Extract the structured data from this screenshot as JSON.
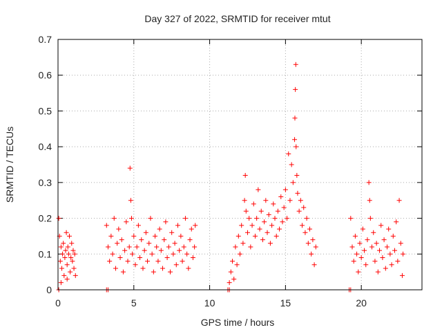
{
  "chart_data": {
    "type": "scatter",
    "title": "Day 327 of 2022, SRMTID for receiver mtut",
    "xlabel": "GPS time / hours",
    "ylabel": "SRMTID / TECUs",
    "xlim": [
      0,
      24
    ],
    "ylim": [
      0,
      0.7
    ],
    "xticks": [
      0,
      5,
      10,
      15,
      20
    ],
    "xtick_labels": [
      "0",
      "5",
      "10",
      "15",
      "20"
    ],
    "yticks": [
      0,
      0.1,
      0.2,
      0.3,
      0.4,
      0.5,
      0.6,
      0.7
    ],
    "ytick_labels": [
      "0",
      "0.1",
      "0.2",
      "0.3",
      "0.4",
      "0.5",
      "0.6",
      "0.7"
    ],
    "grid": true,
    "marker": "+",
    "color": "#ff0000",
    "series": [
      {
        "name": "SRMTID",
        "points": [
          [
            0.05,
            0.2
          ],
          [
            0.1,
            0.15
          ],
          [
            0.15,
            0.08
          ],
          [
            0.2,
            0.12
          ],
          [
            0.25,
            0.06
          ],
          [
            0.3,
            0.1
          ],
          [
            0.35,
            0.13
          ],
          [
            0.4,
            0.04
          ],
          [
            0.45,
            0.09
          ],
          [
            0.5,
            0.11
          ],
          [
            0.55,
            0.16
          ],
          [
            0.6,
            0.07
          ],
          [
            0.65,
            0.12
          ],
          [
            0.7,
            0.1
          ],
          [
            0.75,
            0.15
          ],
          [
            0.8,
            0.05
          ],
          [
            0.85,
            0.09
          ],
          [
            0.9,
            0.13
          ],
          [
            0.95,
            0.08
          ],
          [
            1.0,
            0.11
          ],
          [
            1.05,
            0.06
          ],
          [
            1.1,
            0.1
          ],
          [
            1.15,
            0.04
          ],
          [
            0.2,
            0.02
          ],
          [
            0.6,
            0.03
          ],
          [
            0.05,
            0.0
          ],
          [
            3.2,
            0.0
          ],
          [
            3.3,
            0.0
          ],
          [
            3.2,
            0.18
          ],
          [
            3.3,
            0.12
          ],
          [
            3.4,
            0.08
          ],
          [
            3.5,
            0.15
          ],
          [
            3.6,
            0.1
          ],
          [
            3.7,
            0.2
          ],
          [
            3.8,
            0.06
          ],
          [
            3.9,
            0.13
          ],
          [
            4.0,
            0.17
          ],
          [
            4.1,
            0.09
          ],
          [
            4.2,
            0.14
          ],
          [
            4.3,
            0.05
          ],
          [
            4.4,
            0.11
          ],
          [
            4.5,
            0.19
          ],
          [
            4.6,
            0.08
          ],
          [
            4.7,
            0.12
          ],
          [
            4.75,
            0.34
          ],
          [
            4.8,
            0.25
          ],
          [
            4.85,
            0.2
          ],
          [
            4.9,
            0.1
          ],
          [
            5.0,
            0.15
          ],
          [
            5.1,
            0.07
          ],
          [
            5.2,
            0.12
          ],
          [
            5.3,
            0.18
          ],
          [
            5.4,
            0.09
          ],
          [
            5.5,
            0.14
          ],
          [
            5.6,
            0.06
          ],
          [
            5.7,
            0.11
          ],
          [
            5.8,
            0.16
          ],
          [
            5.9,
            0.08
          ],
          [
            6.0,
            0.13
          ],
          [
            6.1,
            0.2
          ],
          [
            6.2,
            0.1
          ],
          [
            6.3,
            0.05
          ],
          [
            6.4,
            0.15
          ],
          [
            6.5,
            0.12
          ],
          [
            6.6,
            0.08
          ],
          [
            6.7,
            0.17
          ],
          [
            6.8,
            0.11
          ],
          [
            6.9,
            0.06
          ],
          [
            7.0,
            0.14
          ],
          [
            7.1,
            0.19
          ],
          [
            7.2,
            0.09
          ],
          [
            7.3,
            0.12
          ],
          [
            7.4,
            0.05
          ],
          [
            7.5,
            0.16
          ],
          [
            7.6,
            0.1
          ],
          [
            7.7,
            0.13
          ],
          [
            7.8,
            0.07
          ],
          [
            7.9,
            0.18
          ],
          [
            8.0,
            0.11
          ],
          [
            8.1,
            0.15
          ],
          [
            8.2,
            0.08
          ],
          [
            8.3,
            0.12
          ],
          [
            8.4,
            0.2
          ],
          [
            8.5,
            0.1
          ],
          [
            8.6,
            0.06
          ],
          [
            8.7,
            0.14
          ],
          [
            8.8,
            0.17
          ],
          [
            8.9,
            0.09
          ],
          [
            9.0,
            0.12
          ],
          [
            9.05,
            0.18
          ],
          [
            11.2,
            0.0
          ],
          [
            11.3,
            0.0
          ],
          [
            11.3,
            0.02
          ],
          [
            11.4,
            0.05
          ],
          [
            11.5,
            0.08
          ],
          [
            11.6,
            0.03
          ],
          [
            11.7,
            0.12
          ],
          [
            11.8,
            0.07
          ],
          [
            11.9,
            0.15
          ],
          [
            12.0,
            0.1
          ],
          [
            12.1,
            0.18
          ],
          [
            12.2,
            0.13
          ],
          [
            12.3,
            0.25
          ],
          [
            12.35,
            0.32
          ],
          [
            12.4,
            0.22
          ],
          [
            12.5,
            0.16
          ],
          [
            12.6,
            0.2
          ],
          [
            12.7,
            0.12
          ],
          [
            12.8,
            0.18
          ],
          [
            12.9,
            0.24
          ],
          [
            13.0,
            0.15
          ],
          [
            13.1,
            0.2
          ],
          [
            13.2,
            0.28
          ],
          [
            13.3,
            0.17
          ],
          [
            13.4,
            0.22
          ],
          [
            13.5,
            0.14
          ],
          [
            13.6,
            0.19
          ],
          [
            13.7,
            0.25
          ],
          [
            13.8,
            0.16
          ],
          [
            13.9,
            0.21
          ],
          [
            14.0,
            0.13
          ],
          [
            14.1,
            0.18
          ],
          [
            14.2,
            0.24
          ],
          [
            14.3,
            0.2
          ],
          [
            14.4,
            0.15
          ],
          [
            14.5,
            0.22
          ],
          [
            14.6,
            0.17
          ],
          [
            14.7,
            0.26
          ],
          [
            14.8,
            0.19
          ],
          [
            14.9,
            0.23
          ],
          [
            15.0,
            0.28
          ],
          [
            15.1,
            0.2
          ],
          [
            15.2,
            0.38
          ],
          [
            15.3,
            0.25
          ],
          [
            15.4,
            0.35
          ],
          [
            15.5,
            0.3
          ],
          [
            15.6,
            0.42
          ],
          [
            15.62,
            0.48
          ],
          [
            15.65,
            0.56
          ],
          [
            15.68,
            0.63
          ],
          [
            15.7,
            0.4
          ],
          [
            15.75,
            0.32
          ],
          [
            15.8,
            0.27
          ],
          [
            15.9,
            0.22
          ],
          [
            16.0,
            0.25
          ],
          [
            16.1,
            0.18
          ],
          [
            16.2,
            0.23
          ],
          [
            16.3,
            0.16
          ],
          [
            16.4,
            0.2
          ],
          [
            16.5,
            0.13
          ],
          [
            16.6,
            0.17
          ],
          [
            16.7,
            0.1
          ],
          [
            16.8,
            0.14
          ],
          [
            16.9,
            0.07
          ],
          [
            17.0,
            0.12
          ],
          [
            19.2,
            0.0
          ],
          [
            19.3,
            0.0
          ],
          [
            19.3,
            0.2
          ],
          [
            19.4,
            0.12
          ],
          [
            19.5,
            0.08
          ],
          [
            19.6,
            0.15
          ],
          [
            19.7,
            0.1
          ],
          [
            19.8,
            0.05
          ],
          [
            19.9,
            0.13
          ],
          [
            20.0,
            0.09
          ],
          [
            20.1,
            0.17
          ],
          [
            20.2,
            0.11
          ],
          [
            20.3,
            0.07
          ],
          [
            20.4,
            0.14
          ],
          [
            20.5,
            0.3
          ],
          [
            20.55,
            0.25
          ],
          [
            20.6,
            0.2
          ],
          [
            20.7,
            0.12
          ],
          [
            20.8,
            0.16
          ],
          [
            20.9,
            0.08
          ],
          [
            21.0,
            0.13
          ],
          [
            21.1,
            0.05
          ],
          [
            21.2,
            0.11
          ],
          [
            21.3,
            0.18
          ],
          [
            21.4,
            0.09
          ],
          [
            21.5,
            0.14
          ],
          [
            21.6,
            0.06
          ],
          [
            21.7,
            0.12
          ],
          [
            21.8,
            0.17
          ],
          [
            21.9,
            0.1
          ],
          [
            22.0,
            0.07
          ],
          [
            22.1,
            0.15
          ],
          [
            22.2,
            0.11
          ],
          [
            22.3,
            0.19
          ],
          [
            22.4,
            0.08
          ],
          [
            22.5,
            0.25
          ],
          [
            22.6,
            0.13
          ],
          [
            22.7,
            0.04
          ],
          [
            22.75,
            0.1
          ]
        ]
      }
    ]
  }
}
